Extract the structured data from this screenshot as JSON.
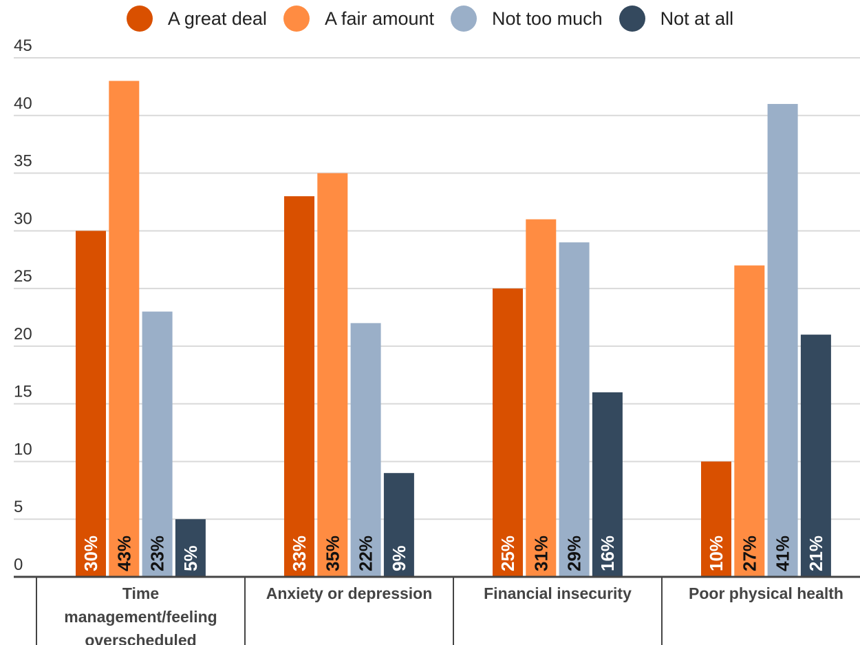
{
  "chart_data": {
    "type": "bar",
    "categories": [
      "Time management/feeling overscheduled",
      "Anxiety or depression",
      "Financial insecurity",
      "Poor physical health"
    ],
    "category_lines": [
      [
        "Time",
        "management/feeling",
        "overscheduled"
      ],
      [
        "Anxiety or depression"
      ],
      [
        "Financial insecurity"
      ],
      [
        "Poor physical health"
      ]
    ],
    "series": [
      {
        "name": "A great deal",
        "color": "#d95000",
        "label_color": "#ffffff",
        "values": [
          30,
          33,
          25,
          10
        ],
        "labels": [
          "30%",
          "33%",
          "25%",
          "10%"
        ]
      },
      {
        "name": "A fair amount",
        "color": "#ff8c42",
        "label_color": "#111111",
        "values": [
          43,
          35,
          31,
          27
        ],
        "labels": [
          "43%",
          "35%",
          "31%",
          "27%"
        ]
      },
      {
        "name": "Not too much",
        "color": "#9aafc8",
        "label_color": "#111111",
        "values": [
          23,
          22,
          29,
          41
        ],
        "labels": [
          "23%",
          "22%",
          "29%",
          "41%"
        ]
      },
      {
        "name": "Not at all",
        "color": "#34495e",
        "label_color": "#ffffff",
        "values": [
          5,
          9,
          16,
          21
        ],
        "labels": [
          "5%",
          "9%",
          "16%",
          "21%"
        ]
      }
    ],
    "yticks": [
      "0",
      "5",
      "10",
      "15",
      "20",
      "25",
      "30",
      "35",
      "40",
      "45"
    ],
    "ylim": [
      0,
      45
    ],
    "title": "",
    "xlabel": "",
    "ylabel": "",
    "grid": true,
    "legend_position": "top"
  }
}
